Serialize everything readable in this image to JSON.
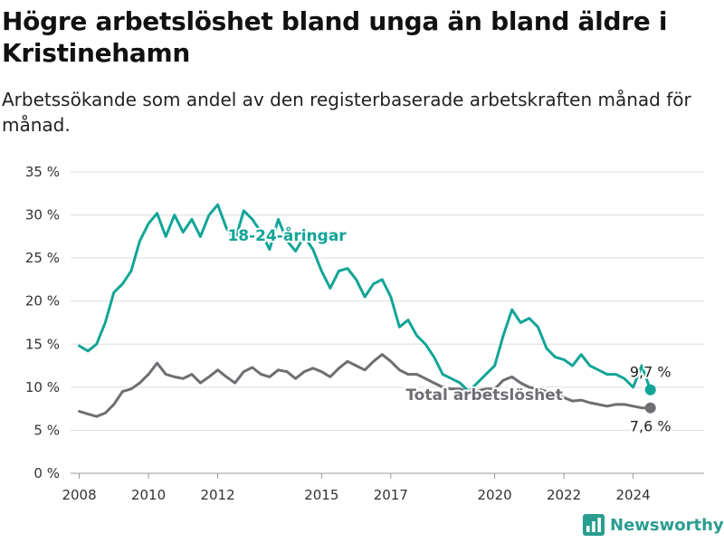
{
  "title": "Högre arbetslöshet bland unga än bland äldre i Kristinehamn",
  "subtitle": "Arbetssökande som andel av den registerbaserade arbetskraften månad för månad.",
  "brand": {
    "name": "Newsworthy",
    "icon": "bar-chart-logo-icon"
  },
  "colors": {
    "youth": "#12a597",
    "total": "#6e6e73",
    "grid": "#dddddd"
  },
  "chart_data": {
    "type": "line",
    "x_ticks": [
      "2008",
      "2010",
      "2012",
      "2015",
      "2017",
      "2020",
      "2022",
      "2024"
    ],
    "y_ticks": [
      "0 %",
      "5 %",
      "10 %",
      "15 %",
      "20 %",
      "25 %",
      "30 %",
      "35 %"
    ],
    "ylim": [
      0,
      35
    ],
    "grid": true,
    "series": [
      {
        "name": "18-24-åringar",
        "end_label": "9,7 %",
        "points": [
          [
            "2008-01",
            14.8
          ],
          [
            "2008-04",
            14.2
          ],
          [
            "2008-07",
            15.0
          ],
          [
            "2008-10",
            17.5
          ],
          [
            "2009-01",
            21.0
          ],
          [
            "2009-04",
            22.0
          ],
          [
            "2009-07",
            23.5
          ],
          [
            "2009-10",
            27.0
          ],
          [
            "2010-01",
            29.0
          ],
          [
            "2010-04",
            30.2
          ],
          [
            "2010-07",
            27.5
          ],
          [
            "2010-10",
            30.0
          ],
          [
            "2011-01",
            28.0
          ],
          [
            "2011-04",
            29.5
          ],
          [
            "2011-07",
            27.5
          ],
          [
            "2011-10",
            30.0
          ],
          [
            "2012-01",
            31.2
          ],
          [
            "2012-04",
            28.5
          ],
          [
            "2012-07",
            27.0
          ],
          [
            "2012-10",
            30.5
          ],
          [
            "2013-01",
            29.5
          ],
          [
            "2013-04",
            28.0
          ],
          [
            "2013-07",
            26.0
          ],
          [
            "2013-10",
            29.5
          ],
          [
            "2014-01",
            27.0
          ],
          [
            "2014-04",
            25.8
          ],
          [
            "2014-07",
            27.5
          ],
          [
            "2014-10",
            26.0
          ],
          [
            "2015-01",
            23.5
          ],
          [
            "2015-04",
            21.5
          ],
          [
            "2015-07",
            23.5
          ],
          [
            "2015-10",
            23.8
          ],
          [
            "2016-01",
            22.5
          ],
          [
            "2016-04",
            20.5
          ],
          [
            "2016-07",
            22.0
          ],
          [
            "2016-10",
            22.5
          ],
          [
            "2017-01",
            20.5
          ],
          [
            "2017-04",
            17.0
          ],
          [
            "2017-07",
            17.8
          ],
          [
            "2017-10",
            16.0
          ],
          [
            "2018-01",
            15.0
          ],
          [
            "2018-04",
            13.5
          ],
          [
            "2018-07",
            11.5
          ],
          [
            "2018-10",
            11.0
          ],
          [
            "2019-01",
            10.5
          ],
          [
            "2019-04",
            9.5
          ],
          [
            "2019-07",
            10.5
          ],
          [
            "2019-10",
            11.5
          ],
          [
            "2020-01",
            12.5
          ],
          [
            "2020-04",
            16.0
          ],
          [
            "2020-07",
            19.0
          ],
          [
            "2020-10",
            17.5
          ],
          [
            "2021-01",
            18.0
          ],
          [
            "2021-04",
            17.0
          ],
          [
            "2021-07",
            14.5
          ],
          [
            "2021-10",
            13.5
          ],
          [
            "2022-01",
            13.2
          ],
          [
            "2022-04",
            12.5
          ],
          [
            "2022-07",
            13.8
          ],
          [
            "2022-10",
            12.5
          ],
          [
            "2023-01",
            12.0
          ],
          [
            "2023-04",
            11.5
          ],
          [
            "2023-07",
            11.5
          ],
          [
            "2023-10",
            11.0
          ],
          [
            "2024-01",
            10.0
          ],
          [
            "2024-04",
            12.5
          ],
          [
            "2024-07",
            9.7
          ]
        ]
      },
      {
        "name": "Total arbetslöshet",
        "end_label": "7,6 %",
        "points": [
          [
            "2008-01",
            7.2
          ],
          [
            "2008-04",
            6.9
          ],
          [
            "2008-07",
            6.6
          ],
          [
            "2008-10",
            7.0
          ],
          [
            "2009-01",
            8.0
          ],
          [
            "2009-04",
            9.5
          ],
          [
            "2009-07",
            9.8
          ],
          [
            "2009-10",
            10.5
          ],
          [
            "2010-01",
            11.5
          ],
          [
            "2010-04",
            12.8
          ],
          [
            "2010-07",
            11.5
          ],
          [
            "2010-10",
            11.2
          ],
          [
            "2011-01",
            11.0
          ],
          [
            "2011-04",
            11.5
          ],
          [
            "2011-07",
            10.5
          ],
          [
            "2011-10",
            11.2
          ],
          [
            "2012-01",
            12.0
          ],
          [
            "2012-04",
            11.2
          ],
          [
            "2012-07",
            10.5
          ],
          [
            "2012-10",
            11.8
          ],
          [
            "2013-01",
            12.3
          ],
          [
            "2013-04",
            11.5
          ],
          [
            "2013-07",
            11.2
          ],
          [
            "2013-10",
            12.0
          ],
          [
            "2014-01",
            11.8
          ],
          [
            "2014-04",
            11.0
          ],
          [
            "2014-07",
            11.8
          ],
          [
            "2014-10",
            12.2
          ],
          [
            "2015-01",
            11.8
          ],
          [
            "2015-04",
            11.2
          ],
          [
            "2015-07",
            12.2
          ],
          [
            "2015-10",
            13.0
          ],
          [
            "2016-01",
            12.5
          ],
          [
            "2016-04",
            12.0
          ],
          [
            "2016-07",
            13.0
          ],
          [
            "2016-10",
            13.8
          ],
          [
            "2017-01",
            13.0
          ],
          [
            "2017-04",
            12.0
          ],
          [
            "2017-07",
            11.5
          ],
          [
            "2017-10",
            11.5
          ],
          [
            "2018-01",
            11.0
          ],
          [
            "2018-04",
            10.5
          ],
          [
            "2018-07",
            10.0
          ],
          [
            "2018-10",
            9.8
          ],
          [
            "2019-01",
            9.8
          ],
          [
            "2019-04",
            9.5
          ],
          [
            "2019-07",
            9.6
          ],
          [
            "2019-10",
            9.8
          ],
          [
            "2020-01",
            9.8
          ],
          [
            "2020-04",
            10.8
          ],
          [
            "2020-07",
            11.2
          ],
          [
            "2020-10",
            10.5
          ],
          [
            "2021-01",
            10.0
          ],
          [
            "2021-04",
            9.8
          ],
          [
            "2021-07",
            9.5
          ],
          [
            "2021-10",
            9.2
          ],
          [
            "2022-01",
            8.8
          ],
          [
            "2022-04",
            8.4
          ],
          [
            "2022-07",
            8.5
          ],
          [
            "2022-10",
            8.2
          ],
          [
            "2023-01",
            8.0
          ],
          [
            "2023-04",
            7.8
          ],
          [
            "2023-07",
            8.0
          ],
          [
            "2023-10",
            8.0
          ],
          [
            "2024-01",
            7.8
          ],
          [
            "2024-04",
            7.6
          ],
          [
            "2024-07",
            7.6
          ]
        ]
      }
    ]
  }
}
